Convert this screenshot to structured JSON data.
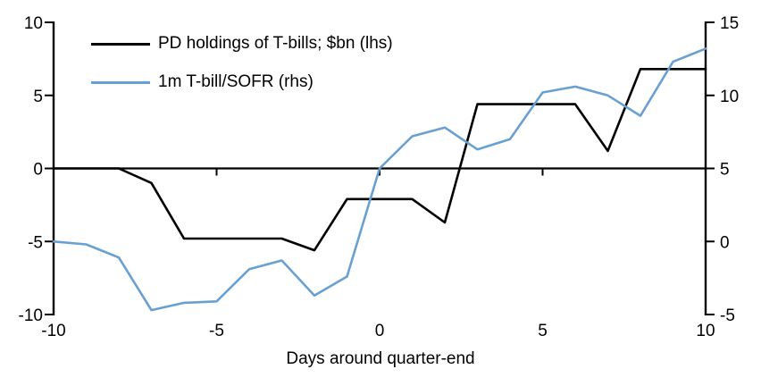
{
  "chart_data": {
    "type": "line",
    "title": "",
    "xlabel": "Days around quarter-end",
    "ylabel_left": "",
    "ylabel_right": "",
    "grid": false,
    "zero_line": true,
    "legend_position": "top-left-inside",
    "x": [
      -10,
      -9,
      -8,
      -7,
      -6,
      -5,
      -4,
      -3,
      -2,
      -1,
      0,
      1,
      2,
      3,
      4,
      5,
      6,
      7,
      8,
      9,
      10
    ],
    "series": [
      {
        "name": "PD holdings of T-bills; $bn (lhs)",
        "axis": "left",
        "color": "#000000",
        "values": [
          0,
          0,
          0,
          -1.0,
          -4.8,
          -4.8,
          -4.8,
          -4.8,
          -5.6,
          -2.1,
          -2.1,
          -2.1,
          -3.7,
          4.4,
          4.4,
          4.4,
          4.4,
          1.2,
          6.8,
          6.8,
          6.8
        ]
      },
      {
        "name": "1m T-bill/SOFR (rhs)",
        "axis": "right",
        "color": "#69A0D2",
        "values": [
          0.0,
          -0.2,
          -1.1,
          -4.7,
          -4.2,
          -4.1,
          -1.9,
          -1.3,
          -3.7,
          -2.4,
          5.0,
          7.2,
          7.8,
          6.3,
          7.0,
          10.2,
          10.6,
          10.0,
          8.6,
          12.3,
          13.2
        ]
      }
    ],
    "left_axis": {
      "range": [
        -10,
        10
      ],
      "ticks": [
        10,
        5,
        0,
        -5,
        -10
      ]
    },
    "right_axis": {
      "range": [
        -5,
        15
      ],
      "ticks": [
        15,
        10,
        5,
        0,
        -5
      ]
    },
    "x_axis": {
      "range": [
        -10,
        10
      ],
      "labels": [
        -10,
        -5,
        0,
        5,
        10
      ],
      "tick_marks_on_zero_line": [
        -5,
        0,
        5
      ]
    }
  }
}
